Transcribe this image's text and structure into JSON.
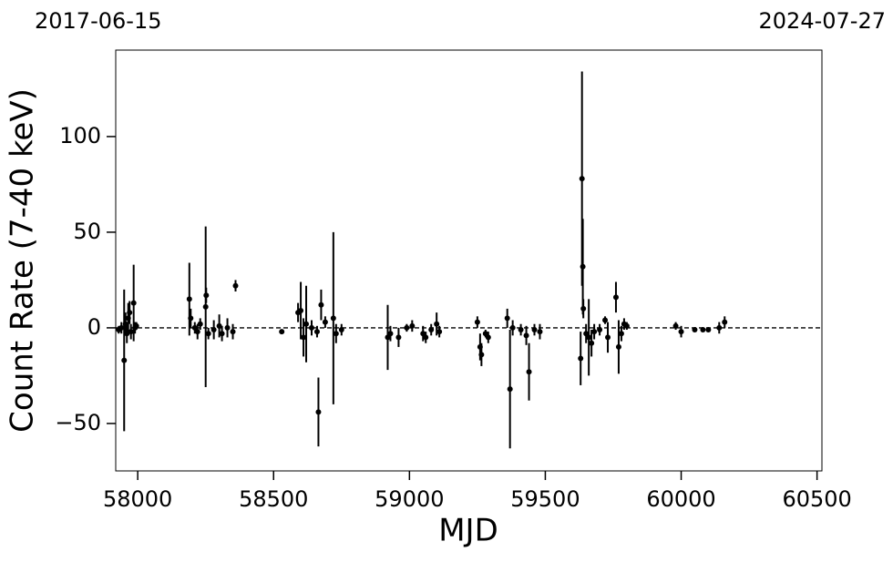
{
  "chart_data": {
    "type": "errorbar",
    "annotations": {
      "left": "2017-06-15",
      "right": "2024-07-27"
    },
    "x_label": "MJD",
    "y_label": "Count Rate (7-40 keV)",
    "xlim": [
      57919,
      60518
    ],
    "ylim": [
      -74.8,
      145.2
    ],
    "xticks": [
      58000,
      58500,
      59000,
      59500,
      60000,
      60500
    ],
    "yticks": [
      {
        "value": -50,
        "label": "−50"
      },
      0,
      50,
      100
    ],
    "reference_line": 0,
    "color": "#000000",
    "series": [
      {
        "x": [
          57930,
          57940,
          57950,
          57955,
          57960,
          57965,
          57970,
          57975,
          57985,
          57990,
          57995,
          58190,
          58195,
          58210,
          58220,
          58230,
          58250,
          58252,
          58260,
          58280,
          58300,
          58310,
          58330,
          58350,
          58360,
          58530,
          58590,
          58600,
          58610,
          58620,
          58640,
          58660,
          58665,
          58675,
          58690,
          58720,
          58730,
          58750,
          58920,
          58930,
          58960,
          58990,
          59010,
          59050,
          59060,
          59080,
          59100,
          59110,
          59250,
          59260,
          59265,
          59280,
          59290,
          59360,
          59370,
          59380,
          59410,
          59430,
          59440,
          59460,
          59480,
          59630,
          59635,
          59638,
          59640,
          59650,
          59660,
          59670,
          59680,
          59700,
          59720,
          59730,
          59760,
          59770,
          59780,
          59790,
          59800,
          59980,
          60000,
          60050,
          60080,
          60100,
          60140,
          60160
        ],
        "values": [
          -1,
          0,
          -17,
          2,
          -3,
          5,
          8,
          -2,
          13,
          0,
          1,
          15,
          5,
          0,
          -2,
          2,
          11,
          17,
          -3,
          -1,
          1,
          -3,
          0,
          -2,
          22,
          -2,
          8,
          9,
          -5,
          2,
          0,
          -2,
          -44,
          12,
          3,
          5,
          -3,
          -1,
          -5,
          -3,
          -5,
          0,
          1,
          -3,
          -5,
          -1,
          2,
          -2,
          3,
          -10,
          -14,
          -3,
          -5,
          5,
          -32,
          0,
          -1,
          -4,
          -23,
          -1,
          -2,
          -16,
          78,
          32,
          10,
          -3,
          -5,
          -8,
          -2,
          -1,
          4,
          -5,
          16,
          -10,
          -3,
          2,
          1,
          1,
          -2,
          -1,
          -1,
          -1,
          0,
          3
        ],
        "errors": [
          2,
          3,
          37,
          6,
          5,
          8,
          6,
          4,
          20,
          3,
          2,
          19,
          5,
          3,
          4,
          3,
          42,
          4,
          3,
          5,
          6,
          4,
          5,
          4,
          3,
          1,
          5,
          15,
          10,
          20,
          4,
          3,
          18,
          8,
          3,
          45,
          5,
          3,
          17,
          4,
          5,
          2,
          3,
          4,
          3,
          3,
          6,
          3,
          3,
          7,
          6,
          2,
          3,
          5,
          31,
          4,
          3,
          5,
          15,
          3,
          4,
          14,
          56,
          25,
          5,
          5,
          20,
          7,
          4,
          3,
          2,
          8,
          8,
          14,
          4,
          3,
          2,
          2,
          3,
          1,
          1,
          1,
          3,
          3
        ]
      }
    ]
  }
}
